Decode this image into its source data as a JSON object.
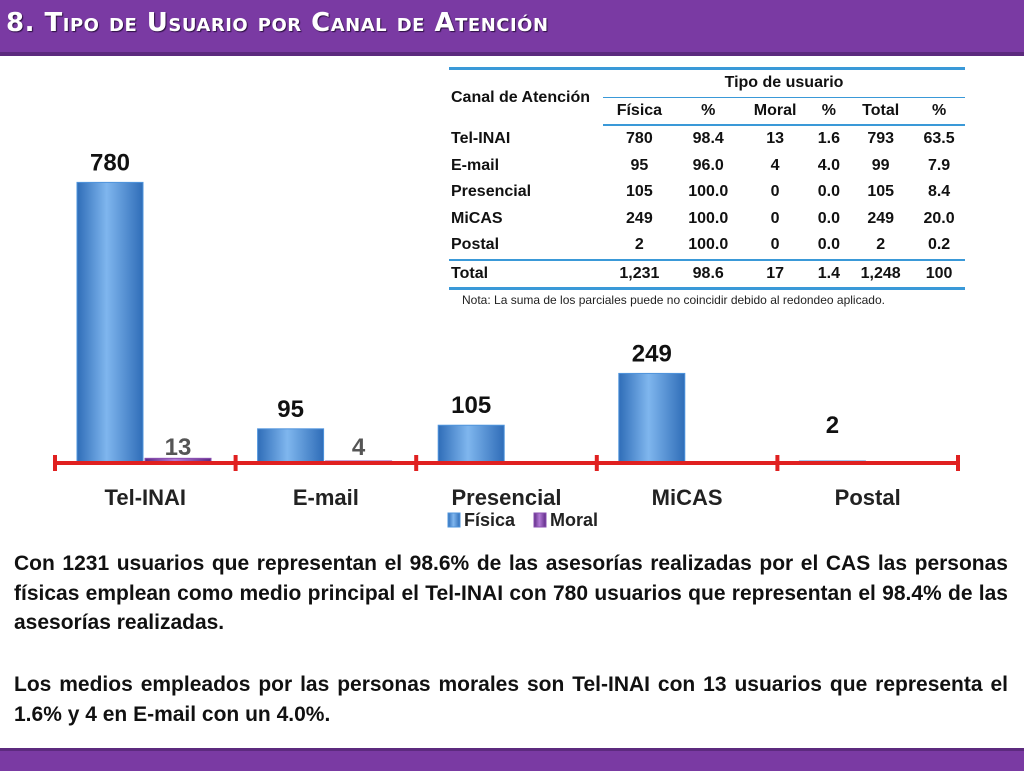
{
  "slide": {
    "title": "8. Tipo de Usuario por Canal de Atención"
  },
  "table": {
    "corner_header": "Canal de Atención",
    "group_header": "Tipo de usuario",
    "sub_headers": [
      "Física",
      "%",
      "Moral",
      "%",
      "Total",
      "%"
    ],
    "rows": [
      {
        "canal": "Tel-INAI",
        "values": [
          "780",
          "98.4",
          "13",
          "1.6",
          "793",
          "63.5"
        ]
      },
      {
        "canal": "E-mail",
        "values": [
          "95",
          "96.0",
          "4",
          "4.0",
          "99",
          "7.9"
        ]
      },
      {
        "canal": "Presencial",
        "values": [
          "105",
          "100.0",
          "0",
          "0.0",
          "105",
          "8.4"
        ]
      },
      {
        "canal": "MiCAS",
        "values": [
          "249",
          "100.0",
          "0",
          "0.0",
          "249",
          "20.0"
        ]
      },
      {
        "canal": "Postal",
        "values": [
          "2",
          "100.0",
          "0",
          "0.0",
          "2",
          "0.2"
        ]
      }
    ],
    "total": {
      "canal": "Total",
      "values": [
        "1,231",
        "98.6",
        "17",
        "1.4",
        "1,248",
        "100"
      ]
    },
    "note": "Nota: La suma de los parciales puede no coincidir debido al redondeo aplicado."
  },
  "chart_data": {
    "type": "bar",
    "categories": [
      "Tel-INAI",
      "E-mail",
      "Presencial",
      "MiCAS",
      "Postal"
    ],
    "series": [
      {
        "name": "Física",
        "values": [
          780,
          95,
          105,
          249,
          2
        ],
        "labels": [
          "780",
          "95",
          "105",
          "249",
          "2"
        ],
        "color": "#4f94dc"
      },
      {
        "name": "Moral",
        "values": [
          13,
          4,
          0,
          0,
          0
        ],
        "labels": [
          "13",
          "4",
          "",
          "",
          ""
        ],
        "color": "#8a4fb0"
      }
    ],
    "ylim": [
      0,
      820
    ],
    "legend": "bottom",
    "grid": false,
    "axis_color": "#e02020"
  },
  "paragraphs": [
    "Con 1231 usuarios que representan el 98.6% de las asesorías realizadas por el CAS las personas físicas emplean como medio principal el Tel-INAI con 780 usuarios que representan el 98.4% de las asesorías realizadas.",
    "Los medios empleados por las personas morales son Tel-INAI con 13 usuarios que representa el 1.6%  y 4 en E-mail  con un 4.0%."
  ],
  "colors": {
    "header_bg": "#7a3aa3",
    "table_rule": "#3a99d8"
  }
}
